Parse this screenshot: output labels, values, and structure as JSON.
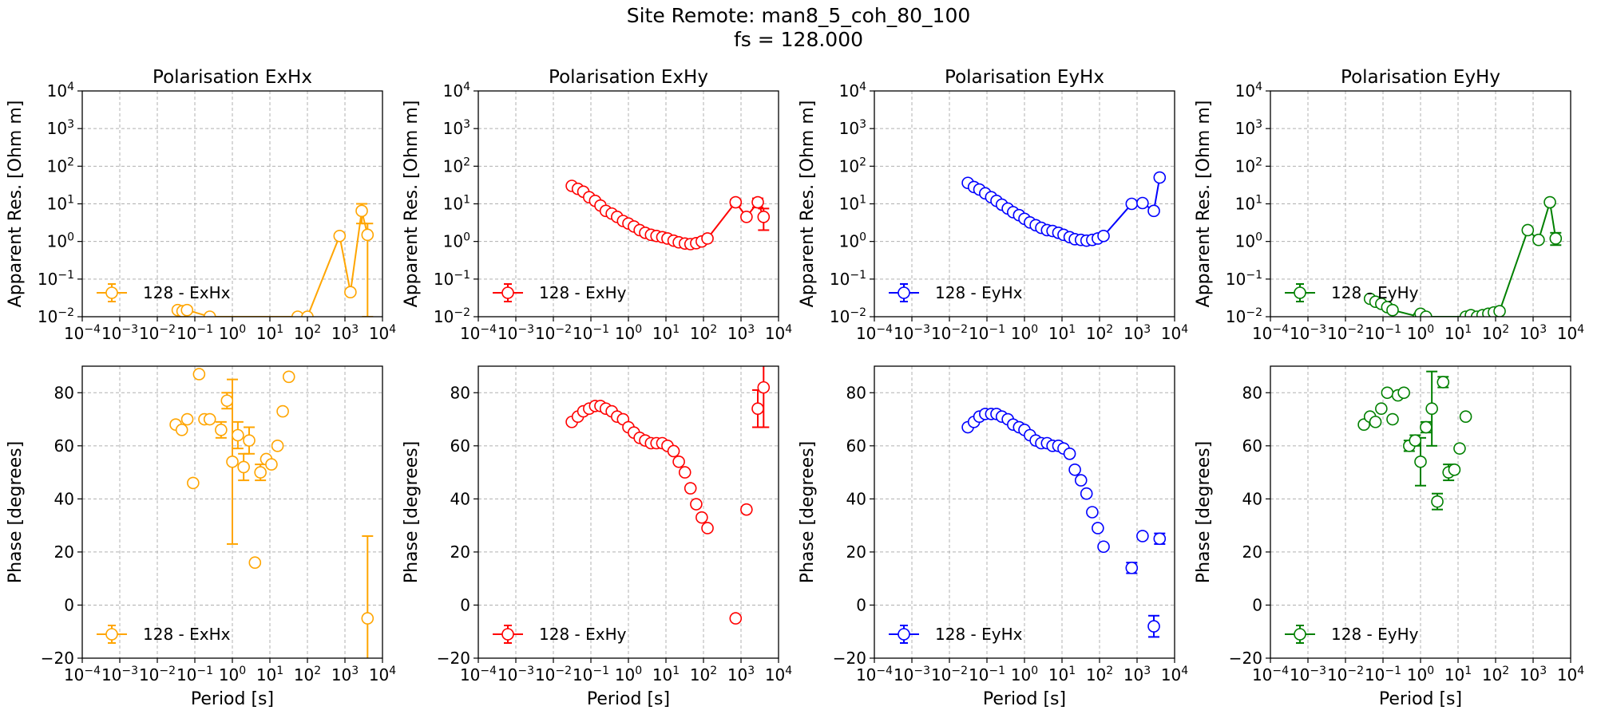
{
  "figure": {
    "title_line1": "Site Remote: man8_5_coh_80_100",
    "title_line2": "fs = 128.000"
  },
  "chart_data": [
    {
      "type": "scatter",
      "row": "resistivity",
      "title": "Polarisation ExHx",
      "xlabel": "",
      "ylabel": "Apparent Res. [Ohm m]",
      "xscale": "log",
      "yscale": "log",
      "xlim": [
        0.0001,
        10000
      ],
      "ylim": [
        0.01,
        10000
      ],
      "grid": true,
      "legend_position": "bottom-left",
      "color": "#FFA500",
      "connected": true,
      "series": [
        {
          "name": "128 - ExHx",
          "x": [
            0.035,
            0.047,
            0.062,
            0.25,
            55,
            100,
            720,
            1400,
            2800,
            4000
          ],
          "y": [
            0.015,
            0.014,
            0.015,
            0.01,
            0.01,
            0.01,
            1.4,
            0.045,
            6.5,
            1.5
          ],
          "err_low": [
            0,
            0,
            0,
            0,
            0,
            0,
            0,
            0,
            3.5,
            1.49
          ],
          "err_high": [
            0,
            0,
            0,
            0,
            0,
            0,
            0,
            0,
            3.5,
            1.5
          ]
        }
      ]
    },
    {
      "type": "scatter",
      "row": "resistivity",
      "title": "Polarisation ExHy",
      "xlabel": "",
      "ylabel": "Apparent Res. [Ohm m]",
      "xscale": "log",
      "yscale": "log",
      "xlim": [
        0.0001,
        10000
      ],
      "ylim": [
        0.01,
        10000
      ],
      "grid": true,
      "legend_position": "bottom-left",
      "color": "#FF0000",
      "connected": true,
      "series": [
        {
          "name": "128 - ExHy",
          "x": [
            0.031,
            0.045,
            0.063,
            0.09,
            0.13,
            0.18,
            0.25,
            0.36,
            0.5,
            0.72,
            1.0,
            1.4,
            2.0,
            2.8,
            4.0,
            5.6,
            8.0,
            11,
            16,
            22,
            32,
            45,
            64,
            90,
            128,
            720,
            1400,
            2800,
            4000
          ],
          "y": [
            30,
            25,
            21,
            15,
            12,
            9,
            6.5,
            5.5,
            4.5,
            3.5,
            3,
            2.5,
            2,
            1.7,
            1.5,
            1.4,
            1.3,
            1.2,
            1.05,
            0.95,
            0.88,
            0.85,
            0.9,
            1.0,
            1.2,
            11,
            4.5,
            11,
            4.5
          ],
          "err_low": [
            0,
            0,
            0,
            0,
            0,
            0,
            0,
            0,
            0,
            0,
            0,
            0,
            0,
            0,
            0,
            0,
            0,
            0,
            0,
            0,
            0,
            0,
            0,
            0,
            0,
            2,
            0,
            3,
            2.5
          ],
          "err_high": [
            0,
            0,
            0,
            0,
            0,
            0,
            0,
            0,
            0,
            0,
            0,
            0,
            0,
            0,
            0,
            0,
            0,
            0,
            0,
            0,
            0,
            0,
            0,
            0,
            0,
            2,
            0,
            3,
            3
          ]
        }
      ]
    },
    {
      "type": "scatter",
      "row": "resistivity",
      "title": "Polarisation EyHx",
      "xlabel": "",
      "ylabel": "Apparent Res. [Ohm m]",
      "xscale": "log",
      "yscale": "log",
      "xlim": [
        0.0001,
        10000
      ],
      "ylim": [
        0.01,
        10000
      ],
      "grid": true,
      "legend_position": "bottom-left",
      "color": "#0000FF",
      "connected": true,
      "series": [
        {
          "name": "128 - EyHx",
          "x": [
            0.031,
            0.045,
            0.063,
            0.09,
            0.13,
            0.18,
            0.25,
            0.36,
            0.5,
            0.72,
            1.0,
            1.4,
            2.0,
            2.8,
            4.0,
            5.6,
            8.0,
            11,
            16,
            22,
            32,
            45,
            64,
            90,
            128,
            720,
            1400,
            2800,
            4000
          ],
          "y": [
            36,
            28,
            24,
            19,
            15,
            12,
            9.5,
            7.5,
            6,
            5,
            4,
            3.2,
            2.7,
            2.3,
            2,
            1.9,
            1.7,
            1.5,
            1.3,
            1.15,
            1.1,
            1.05,
            1.1,
            1.2,
            1.4,
            10,
            10.5,
            6.5,
            50
          ],
          "err_low": [
            0,
            0,
            0,
            0,
            0,
            0,
            0,
            0,
            0,
            0,
            0,
            0,
            0,
            0,
            0,
            0,
            0,
            0,
            0,
            0,
            0,
            0,
            0,
            0,
            0,
            0,
            0,
            0,
            0
          ],
          "err_high": [
            0,
            0,
            0,
            0,
            0,
            0,
            0,
            0,
            0,
            0,
            0,
            0,
            0,
            0,
            0,
            0,
            0,
            0,
            0,
            0,
            0,
            0,
            0,
            0,
            0,
            0,
            0,
            0,
            0
          ]
        }
      ]
    },
    {
      "type": "scatter",
      "row": "resistivity",
      "title": "Polarisation EyHy",
      "xlabel": "",
      "ylabel": "Apparent Res. [Ohm m]",
      "xscale": "log",
      "yscale": "log",
      "xlim": [
        0.0001,
        10000
      ],
      "ylim": [
        0.01,
        10000
      ],
      "grid": true,
      "legend_position": "bottom-left",
      "color": "#008000",
      "connected": true,
      "series": [
        {
          "name": "128 - EyHy",
          "x": [
            0.045,
            0.063,
            0.09,
            0.13,
            0.18,
            0.9,
            1.0,
            1.4,
            16,
            22,
            32,
            45,
            64,
            90,
            128,
            720,
            1400,
            2800,
            4000
          ],
          "y": [
            0.03,
            0.025,
            0.022,
            0.018,
            0.015,
            0.01,
            0.012,
            0.01,
            0.01,
            0.011,
            0.01,
            0.011,
            0.012,
            0.013,
            0.014,
            2,
            1.1,
            11,
            1.2
          ],
          "err_low": [
            0,
            0,
            0,
            0,
            0,
            0,
            0,
            0,
            0,
            0,
            0,
            0,
            0,
            0,
            0,
            0,
            0,
            0,
            0.4
          ],
          "err_high": [
            0,
            0,
            0,
            0,
            0,
            0,
            0,
            0,
            0,
            0,
            0,
            0,
            0,
            0,
            0,
            0,
            0,
            0,
            0.5
          ]
        }
      ]
    },
    {
      "type": "scatter",
      "row": "phase",
      "title": "",
      "xlabel": "Period [s]",
      "ylabel": "Phase [degrees]",
      "xscale": "log",
      "yscale": "linear",
      "xlim": [
        0.0001,
        10000
      ],
      "ylim": [
        -20,
        90
      ],
      "yticks": [
        -20,
        0,
        20,
        40,
        60,
        80
      ],
      "grid": true,
      "legend_position": "bottom-left",
      "color": "#FFA500",
      "connected": false,
      "series": [
        {
          "name": "128 - ExHx",
          "x": [
            0.031,
            0.045,
            0.063,
            0.09,
            0.13,
            0.18,
            0.25,
            0.5,
            0.72,
            1.0,
            1.4,
            2.0,
            2.8,
            4.0,
            5.6,
            8.0,
            11,
            16,
            22,
            32,
            4000
          ],
          "y": [
            68,
            66,
            70,
            46,
            87,
            70,
            70,
            66,
            77,
            54,
            64,
            52,
            62,
            16,
            50,
            55,
            53,
            60,
            73,
            86,
            -5
          ],
          "err_low": [
            0,
            0,
            0,
            0,
            0,
            0,
            0,
            3,
            3,
            31,
            5,
            5,
            5,
            0,
            3,
            0,
            0,
            0,
            0,
            0,
            21
          ],
          "err_high": [
            0,
            0,
            0,
            0,
            0,
            0,
            0,
            3,
            3,
            31,
            5,
            5,
            5,
            0,
            3,
            0,
            0,
            0,
            0,
            0,
            31
          ]
        }
      ]
    },
    {
      "type": "scatter",
      "row": "phase",
      "title": "",
      "xlabel": "Period [s]",
      "ylabel": "Phase [degrees]",
      "xscale": "log",
      "yscale": "linear",
      "xlim": [
        0.0001,
        10000
      ],
      "ylim": [
        -20,
        90
      ],
      "yticks": [
        -20,
        0,
        20,
        40,
        60,
        80
      ],
      "grid": true,
      "legend_position": "bottom-left",
      "color": "#FF0000",
      "connected": false,
      "series": [
        {
          "name": "128 - ExHy",
          "x": [
            0.031,
            0.045,
            0.063,
            0.09,
            0.13,
            0.18,
            0.25,
            0.36,
            0.5,
            0.72,
            1.0,
            1.4,
            2.0,
            2.8,
            4.0,
            5.6,
            8.0,
            11,
            16,
            22,
            32,
            45,
            64,
            90,
            128,
            720,
            1400,
            2800,
            4000
          ],
          "y": [
            69,
            71,
            73,
            74,
            75,
            75,
            74,
            73,
            71,
            70,
            67,
            65,
            63,
            62,
            61,
            61,
            61,
            60,
            58,
            54,
            50,
            44,
            38,
            33,
            29,
            -5,
            36,
            74,
            82
          ],
          "err_low": [
            0,
            0,
            0,
            0,
            0,
            0,
            0,
            0,
            0,
            0,
            0,
            0,
            0,
            0,
            0,
            0,
            0,
            0,
            0,
            0,
            0,
            0,
            0,
            0,
            0,
            0,
            0,
            7,
            15
          ],
          "err_high": [
            0,
            0,
            0,
            0,
            0,
            0,
            0,
            0,
            0,
            0,
            0,
            0,
            0,
            0,
            0,
            0,
            0,
            0,
            0,
            0,
            0,
            0,
            0,
            0,
            0,
            0,
            0,
            7,
            15
          ]
        }
      ]
    },
    {
      "type": "scatter",
      "row": "phase",
      "title": "",
      "xlabel": "Period [s]",
      "ylabel": "Phase [degrees]",
      "xscale": "log",
      "yscale": "linear",
      "xlim": [
        0.0001,
        10000
      ],
      "ylim": [
        -20,
        90
      ],
      "yticks": [
        -20,
        0,
        20,
        40,
        60,
        80
      ],
      "grid": true,
      "legend_position": "bottom-left",
      "color": "#0000FF",
      "connected": false,
      "series": [
        {
          "name": "128 - EyHx",
          "x": [
            0.031,
            0.045,
            0.063,
            0.09,
            0.13,
            0.18,
            0.25,
            0.36,
            0.5,
            0.72,
            1.0,
            1.4,
            2.0,
            2.8,
            4.0,
            5.6,
            8.0,
            11,
            16,
            22,
            32,
            45,
            64,
            90,
            128,
            720,
            1400,
            2800,
            4000
          ],
          "y": [
            67,
            69,
            71,
            72,
            72,
            72,
            71,
            70,
            68,
            67,
            66,
            64,
            62,
            61,
            61,
            60,
            60,
            59,
            57,
            51,
            47,
            42,
            35,
            29,
            22,
            14,
            26,
            -8,
            25
          ],
          "err_low": [
            0,
            0,
            0,
            0,
            0,
            0,
            0,
            0,
            0,
            0,
            0,
            0,
            0,
            0,
            0,
            0,
            0,
            0,
            0,
            0,
            0,
            0,
            0,
            0,
            0,
            2,
            0,
            4,
            2
          ],
          "err_high": [
            0,
            0,
            0,
            0,
            0,
            0,
            0,
            0,
            0,
            0,
            0,
            0,
            0,
            0,
            0,
            0,
            0,
            0,
            0,
            0,
            0,
            0,
            0,
            0,
            0,
            2,
            0,
            4,
            2
          ]
        }
      ]
    },
    {
      "type": "scatter",
      "row": "phase",
      "title": "",
      "xlabel": "Period [s]",
      "ylabel": "Phase [degrees]",
      "xscale": "log",
      "yscale": "linear",
      "xlim": [
        0.0001,
        10000
      ],
      "ylim": [
        -20,
        90
      ],
      "yticks": [
        -20,
        0,
        20,
        40,
        60,
        80
      ],
      "grid": true,
      "legend_position": "bottom-left",
      "color": "#008000",
      "connected": false,
      "series": [
        {
          "name": "128 - EyHy",
          "x": [
            0.031,
            0.045,
            0.063,
            0.09,
            0.13,
            0.18,
            0.25,
            0.36,
            0.5,
            0.72,
            1.0,
            1.4,
            2.0,
            2.8,
            4.0,
            5.6,
            8.0,
            11,
            16
          ],
          "y": [
            68,
            71,
            69,
            74,
            80,
            70,
            79,
            80,
            60,
            62,
            54,
            67,
            74,
            39,
            84,
            50,
            51,
            59,
            71
          ],
          "err_low": [
            0,
            0,
            0,
            0,
            0,
            0,
            0,
            0,
            2,
            2,
            9,
            2,
            14,
            3,
            2,
            3,
            0,
            0,
            0
          ],
          "err_high": [
            0,
            0,
            0,
            0,
            0,
            0,
            0,
            0,
            2,
            2,
            9,
            2,
            14,
            3,
            2,
            3,
            0,
            0,
            0
          ]
        }
      ]
    }
  ]
}
